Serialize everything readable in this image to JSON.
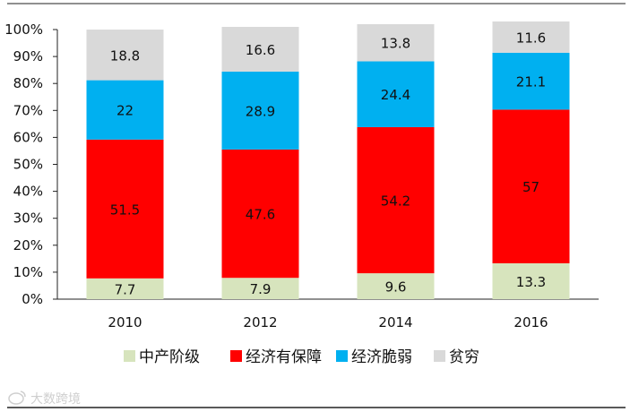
{
  "chart_data": {
    "type": "bar",
    "stacked": true,
    "categories": [
      "2010",
      "2012",
      "2014",
      "2016"
    ],
    "series": [
      {
        "name": "中产阶级",
        "color": "#d7e4bd",
        "values": [
          7.7,
          7.9,
          9.6,
          13.3
        ]
      },
      {
        "name": "经济有保障",
        "color": "#ff0000",
        "values": [
          51.5,
          47.6,
          54.2,
          57
        ]
      },
      {
        "name": "经济脆弱",
        "color": "#00b0f0",
        "values": [
          22,
          28.9,
          24.4,
          21.1
        ]
      },
      {
        "name": "贫穷",
        "color": "#d9d9d9",
        "values": [
          18.8,
          16.6,
          13.8,
          11.6
        ]
      }
    ],
    "ylim": [
      0,
      100
    ],
    "yticks": [
      "0%",
      "10%",
      "20%",
      "30%",
      "40%",
      "50%",
      "60%",
      "70%",
      "80%",
      "90%",
      "100%"
    ],
    "legend_position": "bottom",
    "grid": false
  },
  "watermark": {
    "icon": "weibo-icon",
    "text": "大数跨境"
  }
}
